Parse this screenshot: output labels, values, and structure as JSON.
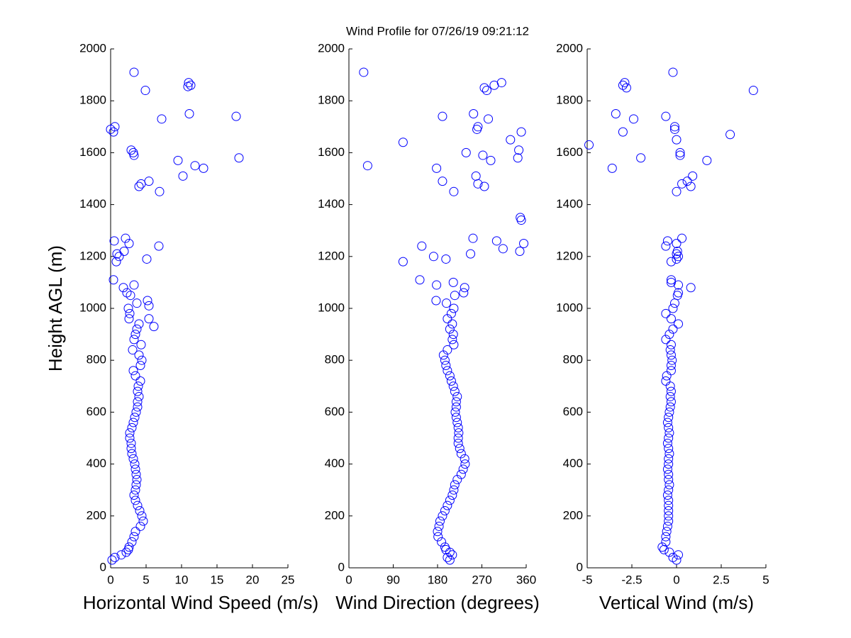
{
  "chart_data": [
    {
      "type": "scatter",
      "ylabel": "Height AGL (m)",
      "xlabel": "Horizontal Wind Speed (m/s)",
      "color": "#0000ff",
      "xlim": [
        0,
        25
      ],
      "xticks": [
        0,
        5,
        10,
        15,
        20,
        25
      ],
      "ylim": [
        0,
        2000
      ],
      "yticks": [
        0,
        200,
        400,
        600,
        800,
        1000,
        1200,
        1400,
        1600,
        1800,
        2000
      ],
      "x": [
        0.2,
        0.6,
        1.5,
        2.2,
        2.5,
        2.6,
        3.0,
        3.3,
        3.5,
        4.2,
        4.6,
        4.4,
        4.1,
        3.8,
        3.5,
        3.3,
        3.5,
        3.6,
        3.7,
        3.6,
        3.5,
        3.4,
        3.2,
        3.0,
        2.9,
        2.9,
        2.7,
        2.7,
        3.0,
        3.2,
        3.4,
        3.6,
        3.8,
        3.8,
        4.0,
        3.8,
        3.9,
        4.2,
        3.5,
        3.2,
        4.2,
        4.4,
        4.0,
        3.1,
        4.3,
        3.3,
        3.5,
        3.7,
        4.0,
        2.6,
        2.7,
        2.5,
        3.7,
        6.1,
        5.4,
        5.4,
        5.2,
        2.8,
        2.3,
        1.8,
        3.3,
        0.4,
        0.8,
        5.1,
        1.2,
        0.9,
        1.9,
        6.8,
        2.6,
        0.5,
        2.1,
        6.9,
        4.0,
        4.3,
        5.4,
        10.2,
        13.1,
        11.9,
        9.5,
        18.1,
        3.3,
        3.2,
        2.9,
        0.4,
        0,
        0.6,
        7.2,
        17.7,
        11.1,
        4.9,
        10.9,
        11.3,
        11.0,
        3.3
      ],
      "values": [
        30,
        40,
        50,
        60,
        70,
        80,
        100,
        120,
        140,
        160,
        180,
        200,
        220,
        240,
        260,
        280,
        300,
        320,
        340,
        360,
        380,
        400,
        420,
        440,
        460,
        480,
        500,
        520,
        540,
        560,
        580,
        600,
        620,
        640,
        660,
        680,
        700,
        720,
        740,
        760,
        780,
        800,
        820,
        840,
        860,
        880,
        900,
        920,
        940,
        960,
        980,
        1000,
        1020,
        930,
        960,
        1010,
        1030,
        1050,
        1060,
        1080,
        1090,
        1110,
        1180,
        1190,
        1200,
        1210,
        1220,
        1240,
        1250,
        1260,
        1270,
        1450,
        1470,
        1480,
        1490,
        1510,
        1540,
        1550,
        1570,
        1580,
        1590,
        1600,
        1610,
        1680,
        1690,
        1700,
        1730,
        1740,
        1750,
        1840,
        1855,
        1860,
        1870,
        1910
      ]
    },
    {
      "type": "scatter",
      "title": "Wind Profile for  07/26/19 09:21:12",
      "xlabel": "Wind Direction (degrees)",
      "color": "#0000ff",
      "xlim": [
        0,
        360
      ],
      "xticks": [
        0,
        90,
        180,
        270,
        360
      ],
      "ylim": [
        0,
        2000
      ],
      "yticks": [
        0,
        200,
        400,
        600,
        800,
        1000,
        1200,
        1400,
        1600,
        1800,
        2000
      ],
      "x": [
        205,
        200,
        210,
        205,
        197,
        195,
        188,
        181,
        180,
        183,
        185,
        190,
        195,
        200,
        205,
        210,
        213,
        215,
        220,
        228,
        232,
        236,
        235,
        228,
        225,
        222,
        222,
        223,
        222,
        220,
        218,
        216,
        218,
        218,
        220,
        215,
        212,
        208,
        205,
        200,
        197,
        195,
        192,
        200,
        213,
        210,
        212,
        205,
        210,
        200,
        208,
        213,
        198,
        177,
        215,
        233,
        235,
        178,
        212,
        144,
        110,
        197,
        172,
        247,
        347,
        313,
        148,
        355,
        300,
        252,
        350,
        348,
        213,
        275,
        262,
        190,
        258,
        178,
        38,
        288,
        343,
        272,
        238,
        345,
        110,
        328,
        350,
        260,
        262,
        283,
        190,
        253,
        280,
        275,
        295,
        310,
        30
      ],
      "values": [
        30,
        40,
        50,
        60,
        70,
        80,
        100,
        120,
        140,
        160,
        180,
        200,
        220,
        240,
        260,
        280,
        300,
        320,
        340,
        360,
        380,
        400,
        420,
        440,
        460,
        480,
        500,
        520,
        540,
        560,
        580,
        600,
        620,
        640,
        660,
        680,
        700,
        720,
        740,
        760,
        780,
        800,
        820,
        840,
        860,
        880,
        900,
        920,
        940,
        960,
        980,
        1000,
        1020,
        1030,
        1050,
        1060,
        1080,
        1090,
        1100,
        1110,
        1180,
        1190,
        1200,
        1210,
        1220,
        1230,
        1240,
        1250,
        1260,
        1270,
        1340,
        1350,
        1450,
        1470,
        1480,
        1490,
        1510,
        1540,
        1550,
        1570,
        1580,
        1590,
        1600,
        1610,
        1640,
        1650,
        1680,
        1690,
        1700,
        1730,
        1740,
        1750,
        1840,
        1850,
        1860,
        1870,
        1910
      ]
    },
    {
      "type": "scatter",
      "xlabel": "Vertical Wind (m/s)",
      "color": "#0000ff",
      "xlim": [
        -5,
        5
      ],
      "xticks": [
        -5,
        -2.5,
        0,
        2.5,
        5
      ],
      "ylim": [
        0,
        2000
      ],
      "yticks": [
        0,
        200,
        400,
        600,
        800,
        1000,
        1200,
        1400,
        1600,
        1800,
        2000
      ],
      "x": [
        0,
        -0.2,
        0.1,
        -0.4,
        -0.7,
        -0.8,
        -0.6,
        -0.6,
        -0.55,
        -0.5,
        -0.45,
        -0.45,
        -0.45,
        -0.45,
        -0.45,
        -0.5,
        -0.45,
        -0.4,
        -0.45,
        -0.45,
        -0.5,
        -0.45,
        -0.45,
        -0.4,
        -0.45,
        -0.5,
        -0.45,
        -0.4,
        -0.45,
        -0.5,
        -0.45,
        -0.4,
        -0.35,
        -0.3,
        -0.35,
        -0.3,
        -0.35,
        -0.6,
        -0.55,
        -0.3,
        -0.3,
        -0.25,
        -0.3,
        -0.35,
        -0.3,
        -0.6,
        -0.4,
        -0.2,
        0.1,
        -0.3,
        -0.6,
        -0.2,
        -0.1,
        0.05,
        0.1,
        0.8,
        0.1,
        -0.3,
        -0.3,
        -0.3,
        0,
        0.1,
        0,
        0.05,
        -0.6,
        0,
        -0.5,
        0.3,
        0,
        0.8,
        0.3,
        0.6,
        0.9,
        -3.6,
        1.7,
        -2.0,
        0.2,
        0.2,
        -4.9,
        0,
        3.0,
        -3.0,
        -0.1,
        -0.1,
        -2.4,
        -0.6,
        -3.4,
        4.3,
        -2.8,
        -3.0,
        -2.9,
        -0.2
      ],
      "values": [
        30,
        40,
        50,
        60,
        70,
        80,
        100,
        120,
        140,
        160,
        180,
        200,
        220,
        240,
        260,
        280,
        300,
        320,
        340,
        360,
        380,
        400,
        420,
        440,
        460,
        480,
        500,
        520,
        540,
        560,
        580,
        600,
        620,
        640,
        660,
        680,
        700,
        720,
        740,
        760,
        780,
        800,
        820,
        840,
        860,
        880,
        900,
        920,
        940,
        960,
        980,
        1000,
        1020,
        1050,
        1060,
        1080,
        1090,
        1100,
        1110,
        1180,
        1190,
        1200,
        1210,
        1220,
        1240,
        1250,
        1260,
        1270,
        1450,
        1470,
        1480,
        1490,
        1510,
        1540,
        1570,
        1580,
        1590,
        1600,
        1630,
        1650,
        1670,
        1680,
        1690,
        1700,
        1730,
        1740,
        1750,
        1840,
        1850,
        1860,
        1870,
        1910
      ]
    }
  ]
}
